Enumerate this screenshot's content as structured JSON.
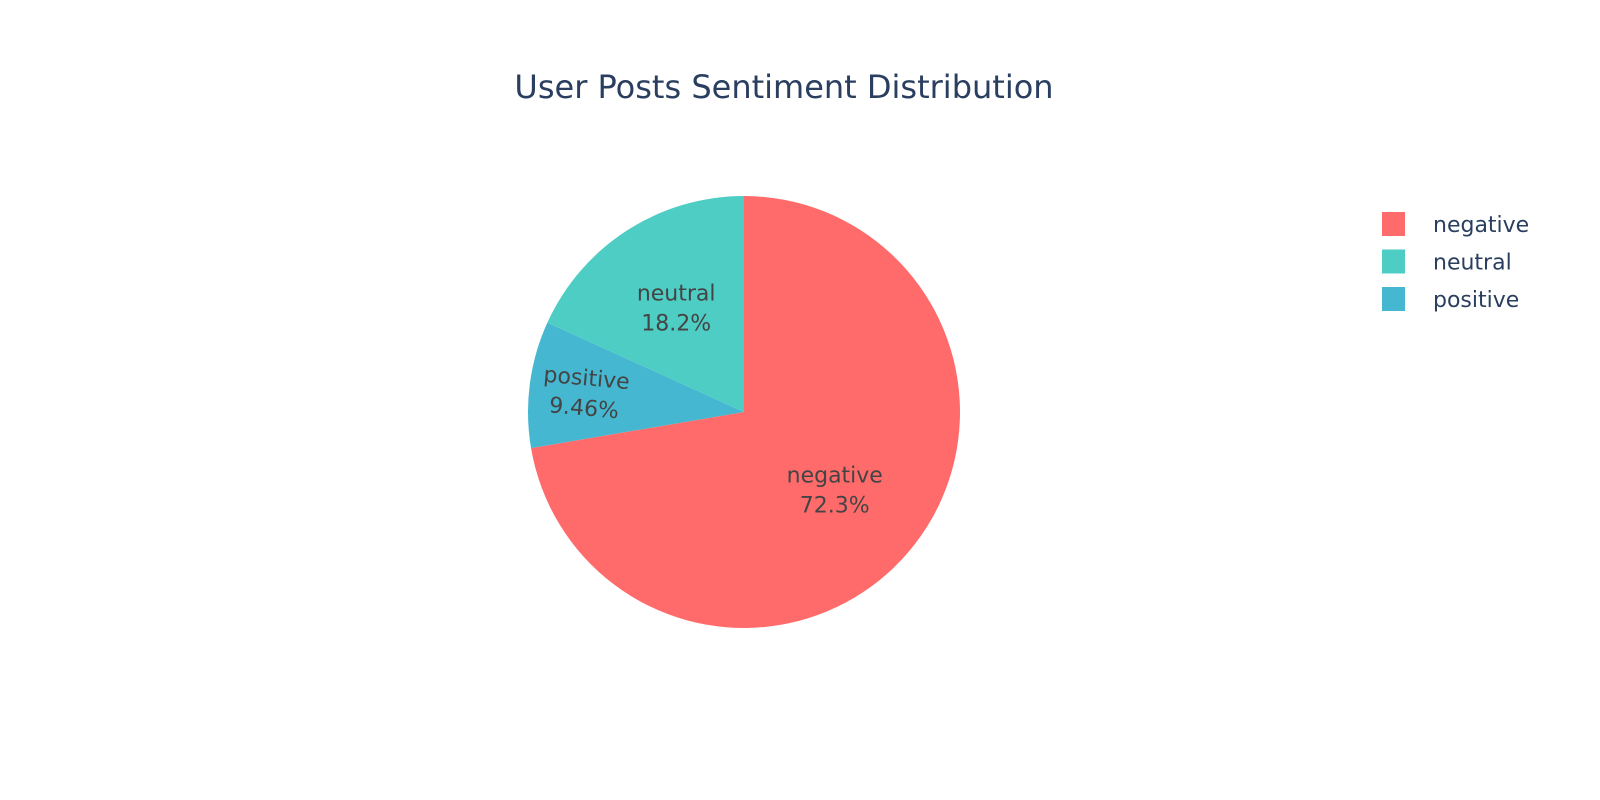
{
  "chart_data": {
    "type": "pie",
    "title": "User Posts Sentiment Distribution",
    "slices": [
      {
        "label": "negative",
        "percent_text": "72.3%",
        "value": 72.3,
        "color": "#ff6b6b"
      },
      {
        "label": "positive",
        "percent_text": "9.46%",
        "value": 9.46,
        "color": "#45b7d1"
      },
      {
        "label": "neutral",
        "percent_text": "18.2%",
        "value": 18.2,
        "color": "#4ecdc4"
      }
    ],
    "legend": {
      "placement": "top-right",
      "items": [
        {
          "label": "negative",
          "color": "#ff6b6b"
        },
        {
          "label": "neutral",
          "color": "#4ecdc4"
        },
        {
          "label": "positive",
          "color": "#45b7d1"
        }
      ]
    }
  }
}
